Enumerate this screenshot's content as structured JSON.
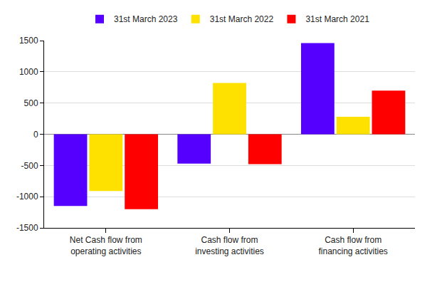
{
  "chart_data": {
    "type": "bar",
    "categories": [
      "Net Cash flow from operating activities",
      "Cash flow from investing activities",
      "Cash flow from financing activities"
    ],
    "series": [
      {
        "name": "31st March 2023",
        "color": "#5500ff",
        "values": [
          -1150,
          -470,
          1460
        ]
      },
      {
        "name": "31st March 2022",
        "color": "#ffe100",
        "values": [
          -910,
          820,
          280
        ]
      },
      {
        "name": "31st March 2021",
        "color": "#ff0000",
        "values": [
          -1200,
          -480,
          700
        ]
      }
    ],
    "ylim": [
      -1500,
      1500
    ],
    "yticks": [
      -1500,
      -1000,
      -500,
      0,
      500,
      1000,
      1500
    ],
    "grid": true,
    "legend": "top"
  }
}
